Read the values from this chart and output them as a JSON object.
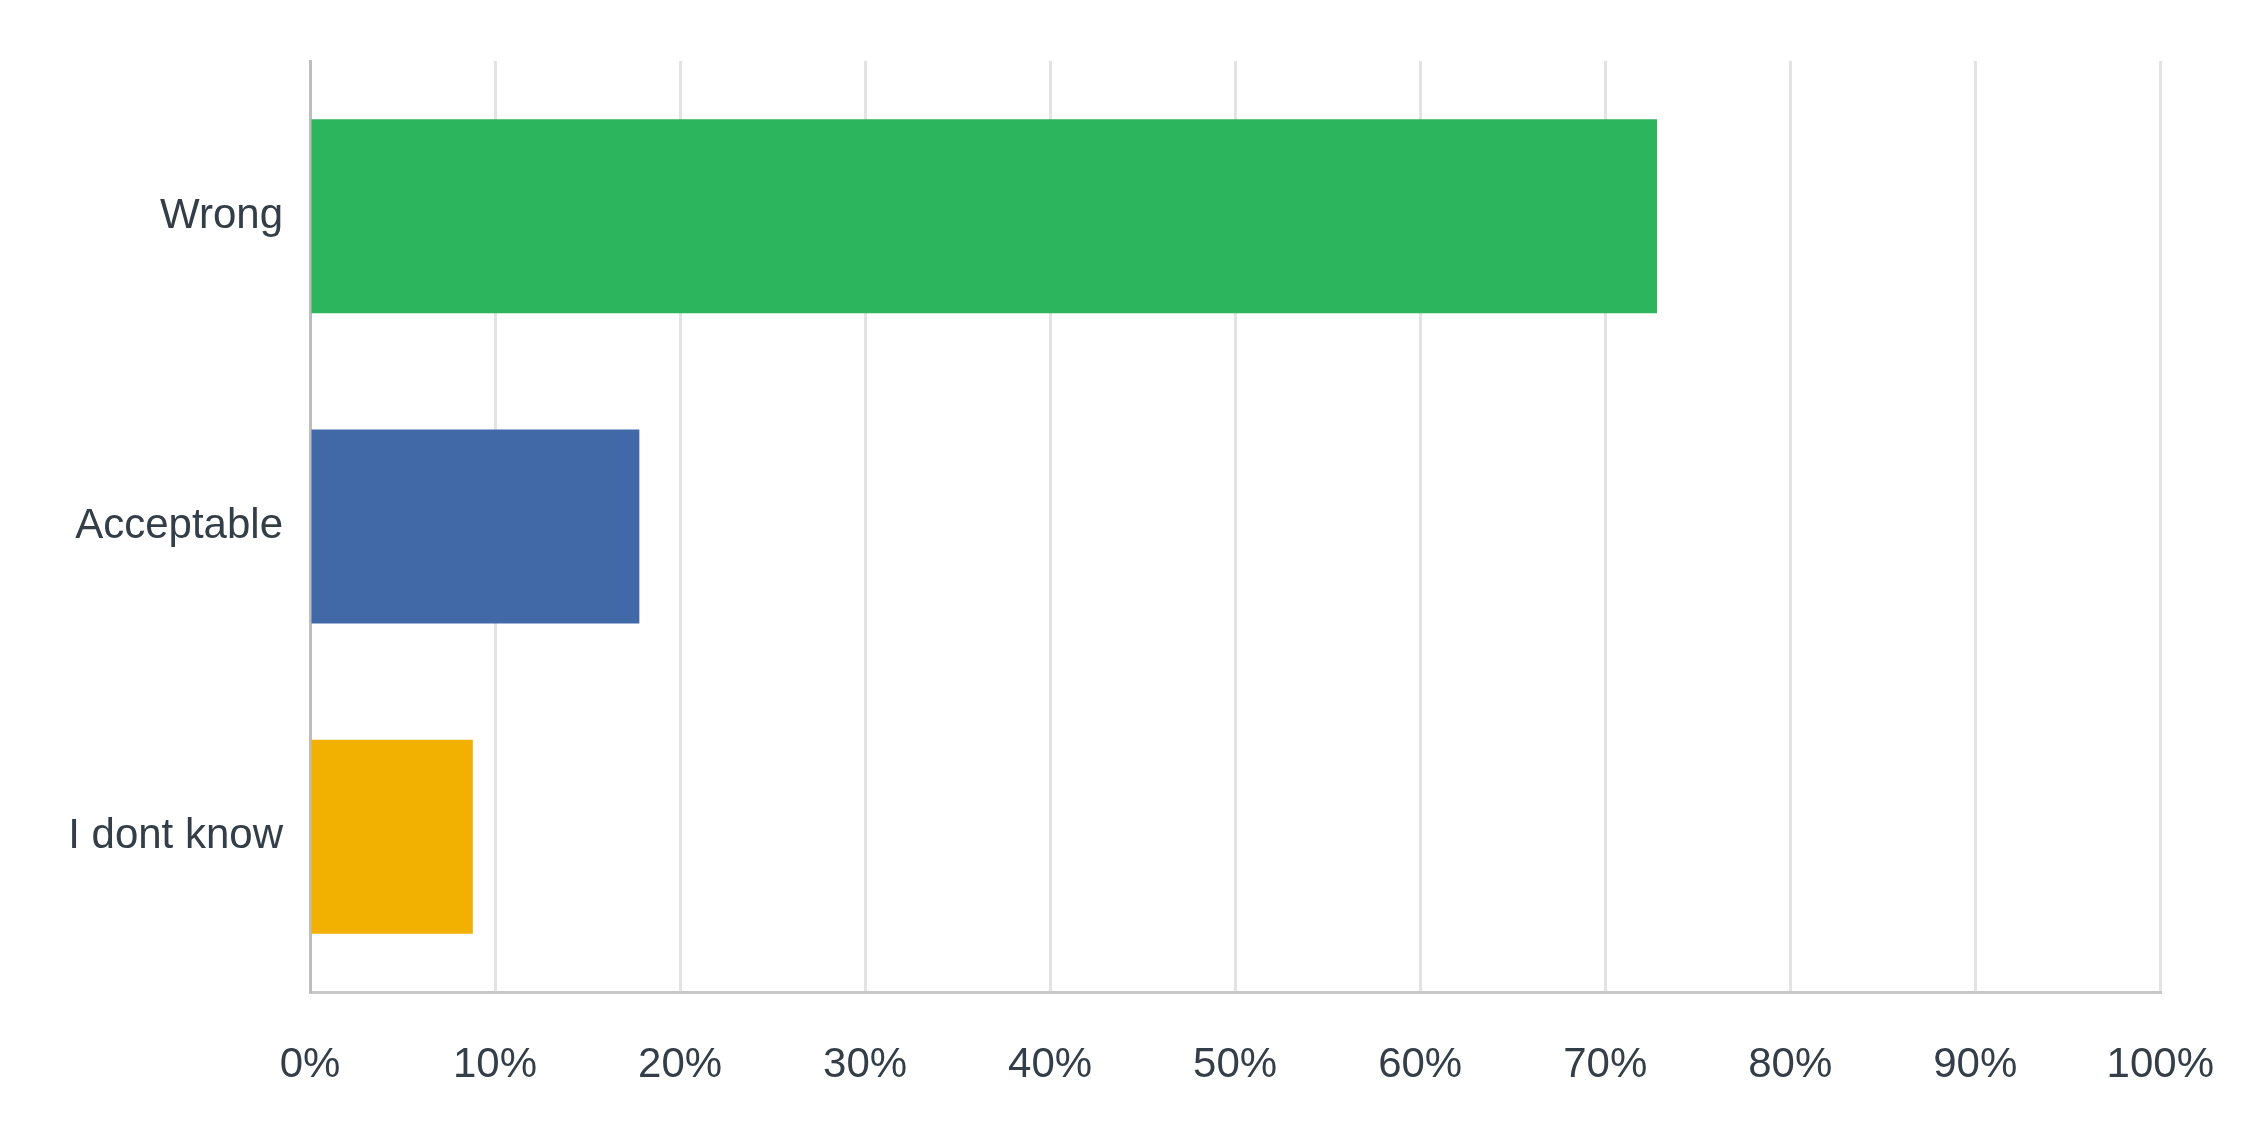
{
  "chart_data": {
    "type": "bar",
    "orientation": "horizontal",
    "categories": [
      "Wrong",
      "Acceptable",
      "I dont know"
    ],
    "values": [
      72.8,
      17.8,
      8.8
    ],
    "colors": [
      "#2db55d",
      "#4169a8",
      "#f2b100"
    ],
    "xlim": [
      0,
      100
    ],
    "xticks": [
      {
        "value": 0,
        "label": "0%"
      },
      {
        "value": 10,
        "label": "10%"
      },
      {
        "value": 20,
        "label": "20%"
      },
      {
        "value": 30,
        "label": "30%"
      },
      {
        "value": 40,
        "label": "40%"
      },
      {
        "value": 50,
        "label": "50%"
      },
      {
        "value": 60,
        "label": "60%"
      },
      {
        "value": 70,
        "label": "70%"
      },
      {
        "value": 80,
        "label": "80%"
      },
      {
        "value": 90,
        "label": "90%"
      },
      {
        "value": 100,
        "label": "100%"
      }
    ],
    "grid": "x"
  }
}
